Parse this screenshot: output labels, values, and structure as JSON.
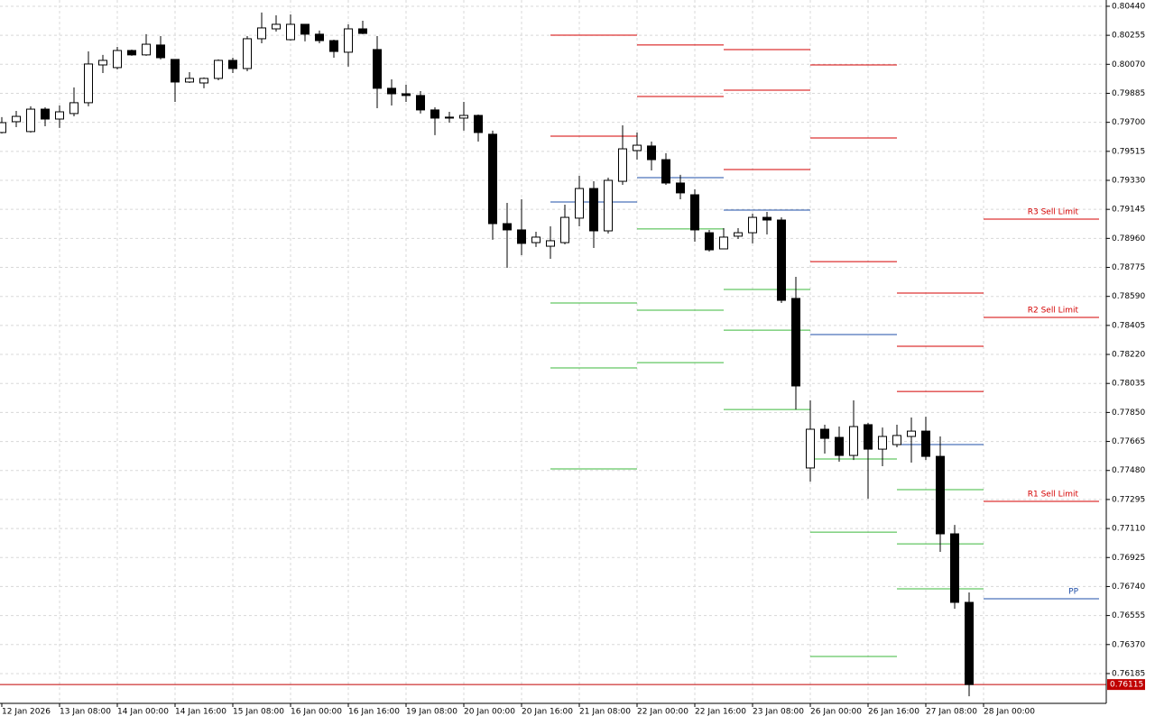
{
  "chart_data": {
    "type": "candlestick",
    "categories": [
      "12 Jan 2026",
      null,
      null,
      null,
      "13 Jan 08:00",
      null,
      null,
      null,
      "14 Jan 00:00",
      null,
      null,
      null,
      "14 Jan 16:00",
      null,
      null,
      null,
      "15 Jan 08:00",
      null,
      null,
      null,
      "16 Jan 00:00",
      null,
      null,
      null,
      "16 Jan 16:00",
      null,
      null,
      null,
      "19 Jan 08:00",
      null,
      null,
      null,
      "20 Jan 00:00",
      null,
      null,
      null,
      "20 Jan 16:00",
      null,
      null,
      null,
      "21 Jan 08:00",
      null,
      null,
      null,
      "22 Jan 00:00",
      null,
      null,
      null,
      "22 Jan 16:00",
      null,
      null,
      null,
      "23 Jan 08:00",
      null,
      null,
      null,
      "26 Jan 00:00",
      null,
      null,
      null,
      "26 Jan 16:00",
      null,
      null,
      null,
      "27 Jan 08:00",
      null,
      null,
      null,
      "28 Jan 00:00"
    ],
    "open": [
      0.79635,
      0.79704,
      0.79641,
      0.79784,
      0.79721,
      0.79756,
      0.79825,
      0.80066,
      0.80049,
      0.80158,
      0.8013,
      0.80193,
      0.80101,
      0.79957,
      0.79951,
      0.7998,
      0.80095,
      0.80043,
      0.80233,
      0.80296,
      0.80227,
      0.80325,
      0.80262,
      0.80221,
      0.80147,
      0.80296,
      0.80164,
      0.79917,
      0.79882,
      0.79871,
      0.79779,
      0.79733,
      0.79727,
      0.79744,
      0.79624,
      0.79054,
      0.79014,
      0.78933,
      0.7891,
      0.78933,
      0.79089,
      0.79278,
      0.79008,
      0.79324,
      0.7952,
      0.79549,
      0.79462,
      0.79313,
      0.79238,
      0.78996,
      0.78893,
      0.78974,
      0.78996,
      0.79094,
      0.79077,
      0.78577,
      0.77496,
      0.77743,
      0.77691,
      0.77576,
      0.77772,
      0.77616,
      0.77645,
      0.77697,
      0.77731,
      0.7757,
      0.77076,
      0.76639,
      null
    ],
    "high": [
      0.79733,
      0.79773,
      0.79802,
      0.79796,
      0.79807,
      0.79922,
      0.80152,
      0.8013,
      0.80181,
      0.80164,
      0.80262,
      0.8025,
      0.80101,
      0.8002,
      0.79986,
      0.80101,
      0.80112,
      0.8025,
      0.804,
      0.80382,
      0.80388,
      0.80325,
      0.80285,
      0.80227,
      0.80325,
      0.80348,
      0.8025,
      0.79974,
      0.7994,
      0.79899,
      0.79796,
      0.79767,
      0.7983,
      0.7975,
      0.79647,
      0.79186,
      0.79209,
      0.79002,
      0.79037,
      0.79175,
      0.79359,
      0.79324,
      0.79347,
      0.79681,
      0.79635,
      0.79577,
      0.79503,
      0.79365,
      0.79273,
      0.79014,
      0.79025,
      0.79025,
      0.79117,
      0.79129,
      0.79094,
      0.78715,
      0.77927,
      0.77772,
      0.7776,
      0.77927,
      0.77783,
      0.77754,
      0.77772,
      0.77818,
      0.77823,
      0.77697,
      0.77133,
      0.76702,
      null
    ],
    "low": [
      0.79629,
      0.79669,
      0.79635,
      0.79675,
      0.79664,
      0.79738,
      0.79802,
      0.80014,
      0.80037,
      0.80124,
      0.80124,
      0.80101,
      0.7983,
      0.79951,
      0.79917,
      0.79968,
      0.80014,
      0.80026,
      0.80204,
      0.80279,
      0.80221,
      0.80216,
      0.80204,
      0.80112,
      0.80055,
      0.80262,
      0.7979,
      0.79807,
      0.7983,
      0.79756,
      0.79618,
      0.79698,
      0.79647,
      0.79577,
      0.78951,
      0.78772,
      0.78853,
      0.78905,
      0.7883,
      0.78922,
      0.79037,
      0.78899,
      0.78991,
      0.79301,
      0.79462,
      0.79393,
      0.79301,
      0.79209,
      0.78939,
      0.78876,
      0.78893,
      0.78956,
      0.78928,
      0.78985,
      0.78548,
      0.77869,
      0.77409,
      0.77588,
      0.77536,
      0.77547,
      0.773,
      0.77507,
      0.77628,
      0.7753,
      0.77547,
      0.76961,
      0.76598,
      0.7604,
      null
    ],
    "close": [
      0.79698,
      0.79738,
      0.79784,
      0.79721,
      0.79767,
      0.79825,
      0.80072,
      0.80095,
      0.80158,
      0.8013,
      0.80198,
      0.80112,
      0.79957,
      0.7998,
      0.7998,
      0.80095,
      0.80043,
      0.80233,
      0.80302,
      0.80325,
      0.80325,
      0.80262,
      0.80221,
      0.80152,
      0.80296,
      0.80267,
      0.79917,
      0.79882,
      0.79871,
      0.79779,
      0.79727,
      0.79727,
      0.79744,
      0.79635,
      0.79054,
      0.79014,
      0.78928,
      0.78968,
      0.78945,
      0.79094,
      0.79278,
      0.79008,
      0.7933,
      0.79531,
      0.79554,
      0.79462,
      0.79313,
      0.7925,
      0.79014,
      0.78887,
      0.78968,
      0.78996,
      0.79094,
      0.79077,
      0.78565,
      0.78019,
      0.77743,
      0.77685,
      0.77576,
      0.7776,
      0.77616,
      0.77697,
      0.77703,
      0.77731,
      0.7757,
      0.77076,
      0.76639,
      0.76115,
      null
    ],
    "up_color": "#ffffff",
    "down_color": "#000000",
    "ylim": [
      0.75995,
      0.8048
    ],
    "yticks": [
      {
        "value": 0.8044,
        "label": "0.80440"
      },
      0.80255,
      {
        "value": 0.8007,
        "label": "0.80070"
      },
      0.79885,
      {
        "value": 0.797,
        "label": "0.79700"
      },
      0.79515,
      {
        "value": 0.7933,
        "label": "0.79330"
      },
      0.79145,
      {
        "value": 0.7896,
        "label": "0.78960"
      },
      0.78775,
      {
        "value": 0.7859,
        "label": "0.78590"
      },
      0.78405,
      {
        "value": 0.7822,
        "label": "0.78220"
      },
      0.78035,
      {
        "value": 0.7785,
        "label": "0.77850"
      },
      0.77665,
      {
        "value": 0.7748,
        "label": "0.77480"
      },
      0.77295,
      {
        "value": 0.7711,
        "label": "0.77110"
      },
      0.76925,
      {
        "value": 0.7674,
        "label": "0.76740"
      },
      0.76555,
      {
        "value": 0.7637,
        "label": "0.76370"
      },
      0.76185
    ],
    "grid": true,
    "current_price": 0.76115,
    "current_price_color": "#c00000",
    "pivot_segments": [
      {
        "start": 38,
        "end": 44,
        "levels": [
          {
            "value": 0.80256,
            "color": "#d40000"
          },
          {
            "value": 0.79612,
            "color": "#d40000"
          },
          {
            "value": 0.79192,
            "color": "#1f4fa8"
          },
          {
            "value": 0.78548,
            "color": "#3cb93c"
          },
          {
            "value": 0.78134,
            "color": "#3cb93c"
          },
          {
            "value": 0.7749,
            "color": "#3cb93c"
          }
        ]
      },
      {
        "start": 44,
        "end": 50,
        "levels": [
          {
            "value": 0.80193,
            "color": "#d40000"
          },
          {
            "value": 0.79865,
            "color": "#d40000"
          },
          {
            "value": 0.79347,
            "color": "#1f4fa8"
          },
          {
            "value": 0.7902,
            "color": "#3cb93c"
          },
          {
            "value": 0.78502,
            "color": "#3cb93c"
          },
          {
            "value": 0.78168,
            "color": "#3cb93c"
          }
        ]
      },
      {
        "start": 50,
        "end": 56,
        "levels": [
          {
            "value": 0.80164,
            "color": "#d40000"
          },
          {
            "value": 0.79905,
            "color": "#d40000"
          },
          {
            "value": 0.79399,
            "color": "#d40000"
          },
          {
            "value": 0.7914,
            "color": "#1f4fa8"
          },
          {
            "value": 0.78634,
            "color": "#3cb93c"
          },
          {
            "value": 0.78375,
            "color": "#3cb93c"
          },
          {
            "value": 0.77869,
            "color": "#3cb93c"
          }
        ]
      },
      {
        "start": 56,
        "end": 62,
        "levels": [
          {
            "value": 0.80066,
            "color": "#d40000"
          },
          {
            "value": 0.796,
            "color": "#d40000"
          },
          {
            "value": 0.78812,
            "color": "#d40000"
          },
          {
            "value": 0.78347,
            "color": "#1f4fa8"
          },
          {
            "value": 0.77553,
            "color": "#3cb93c"
          },
          {
            "value": 0.77087,
            "color": "#3cb93c"
          },
          {
            "value": 0.76294,
            "color": "#3cb93c"
          }
        ]
      },
      {
        "start": 62,
        "end": 68,
        "levels": [
          {
            "value": 0.78611,
            "color": "#d40000"
          },
          {
            "value": 0.78272,
            "color": "#d40000"
          },
          {
            "value": 0.77984,
            "color": "#d40000"
          },
          {
            "value": 0.77645,
            "color": "#1f4fa8"
          },
          {
            "value": 0.77358,
            "color": "#3cb93c"
          },
          {
            "value": 0.77012,
            "color": "#3cb93c"
          },
          {
            "value": 0.76725,
            "color": "#3cb93c"
          }
        ]
      },
      {
        "start": 68,
        "end": 76,
        "levels": [
          {
            "value": 0.79083,
            "color": "#d40000",
            "label": "R3 Sell Limit"
          },
          {
            "value": 0.78456,
            "color": "#d40000",
            "label": "R2 Sell Limit"
          },
          {
            "value": 0.77283,
            "color": "#d40000",
            "label": "R1 Sell Limit"
          },
          {
            "value": 0.76662,
            "color": "#1f4fa8",
            "label": "PP"
          }
        ]
      }
    ]
  }
}
